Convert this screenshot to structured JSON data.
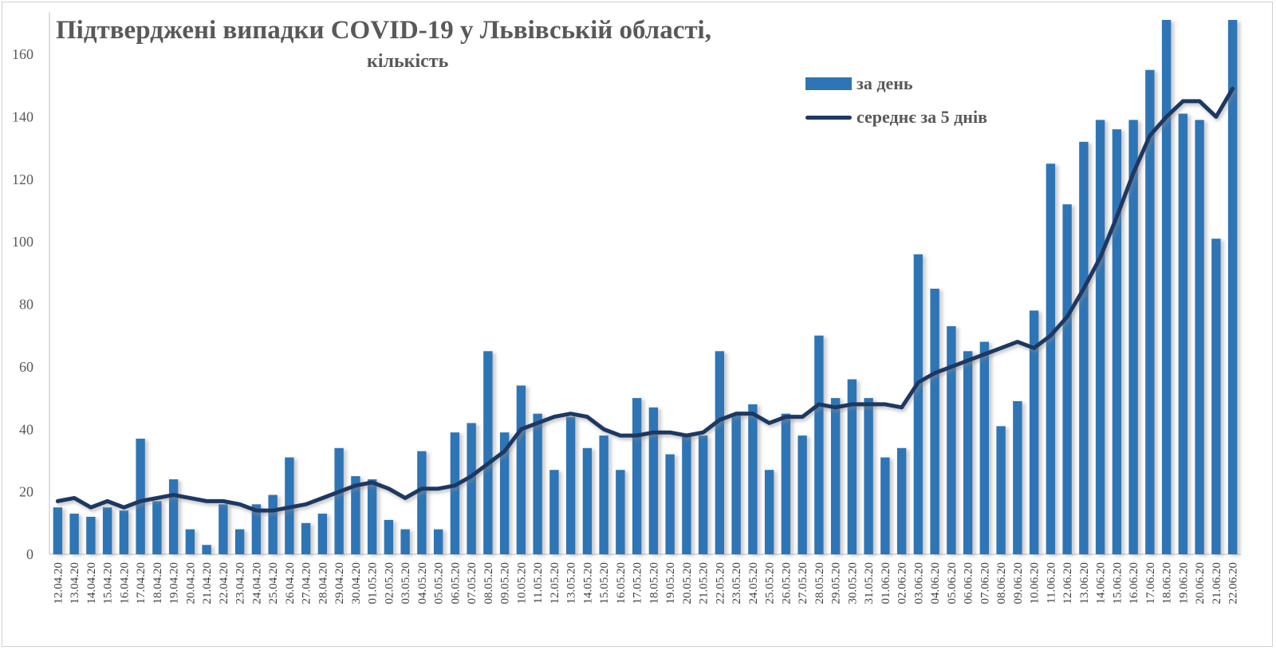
{
  "chart_data": {
    "type": "bar+line",
    "title": "Підтверджені випадки COVID-19 у Львівській області,",
    "subtitle": "кількість",
    "xlabel": "",
    "ylabel": "",
    "ylim": [
      0,
      171
    ],
    "yticks": [
      "0",
      "20",
      "40",
      "60",
      "80",
      "100",
      "120",
      "140",
      "160"
    ],
    "grid": false,
    "legend_position": "top-right",
    "categories": [
      "12.04.20",
      "13.04.20",
      "14.04.20",
      "15.04.20",
      "16.04.20",
      "17.04.20",
      "18.04.20",
      "19.04.20",
      "20.04.20",
      "21.04.20",
      "22.04.20",
      "23.04.20",
      "24.04.20",
      "25.04.20",
      "26.04.20",
      "27.04.20",
      "28.04.20",
      "29.04.20",
      "30.04.20",
      "01.05.20",
      "02.05.20",
      "03.05.20",
      "04.05.20",
      "05.05.20",
      "06.05.20",
      "07.05.20",
      "08.05.20",
      "09.05.20",
      "10.05.20",
      "11.05.20",
      "12.05.20",
      "13.05.20",
      "14.05.20",
      "15.05.20",
      "16.05.20",
      "17.05.20",
      "18.05.20",
      "19.05.20",
      "20.05.20",
      "21.05.20",
      "22.05.20",
      "23.05.20",
      "24.05.20",
      "25.05.20",
      "26.05.20",
      "27.05.20",
      "28.05.20",
      "29.05.20",
      "30.05.20",
      "31.05.20",
      "01.06.20",
      "02.06.20",
      "03.06.20",
      "04.06.20",
      "05.06.20",
      "06.06.20",
      "07.06.20",
      "08.06.20",
      "09.06.20",
      "10.06.20",
      "11.06.20",
      "12.06.20",
      "13.06.20",
      "14.06.20",
      "15.06.20",
      "16.06.20",
      "17.06.20",
      "18.06.20",
      "19.06.20",
      "20.06.20",
      "21.06.20",
      "22.06.20"
    ],
    "series": [
      {
        "name": "за день",
        "kind": "bar",
        "color": "#2e75b6",
        "values": [
          15,
          13,
          12,
          15,
          14,
          37,
          17,
          24,
          8,
          3,
          16,
          8,
          16,
          19,
          31,
          10,
          13,
          34,
          25,
          24,
          11,
          8,
          33,
          8,
          39,
          42,
          65,
          39,
          54,
          45,
          27,
          44,
          34,
          38,
          27,
          50,
          47,
          32,
          38,
          38,
          65,
          45,
          48,
          27,
          45,
          38,
          70,
          50,
          56,
          50,
          31,
          34,
          96,
          85,
          73,
          65,
          68,
          41,
          49,
          78,
          125,
          112,
          132,
          139,
          136,
          139,
          155,
          173,
          141,
          139,
          101,
          175
        ]
      },
      {
        "name": "середнє за 5 днів",
        "kind": "line",
        "color": "#1f3864",
        "values": [
          17,
          18,
          15,
          17,
          15,
          17,
          18,
          19,
          18,
          17,
          17,
          16,
          14,
          14,
          15,
          16,
          18,
          20,
          22,
          23,
          21,
          18,
          21,
          21,
          22,
          25,
          29,
          33,
          40,
          42,
          44,
          45,
          44,
          40,
          38,
          38,
          39,
          39,
          38,
          39,
          43,
          45,
          45,
          42,
          44,
          44,
          48,
          47,
          48,
          48,
          48,
          47,
          55,
          58,
          60,
          62,
          64,
          66,
          68,
          66,
          70,
          76,
          85,
          95,
          108,
          122,
          134,
          140,
          145,
          145,
          140,
          149
        ]
      }
    ]
  }
}
